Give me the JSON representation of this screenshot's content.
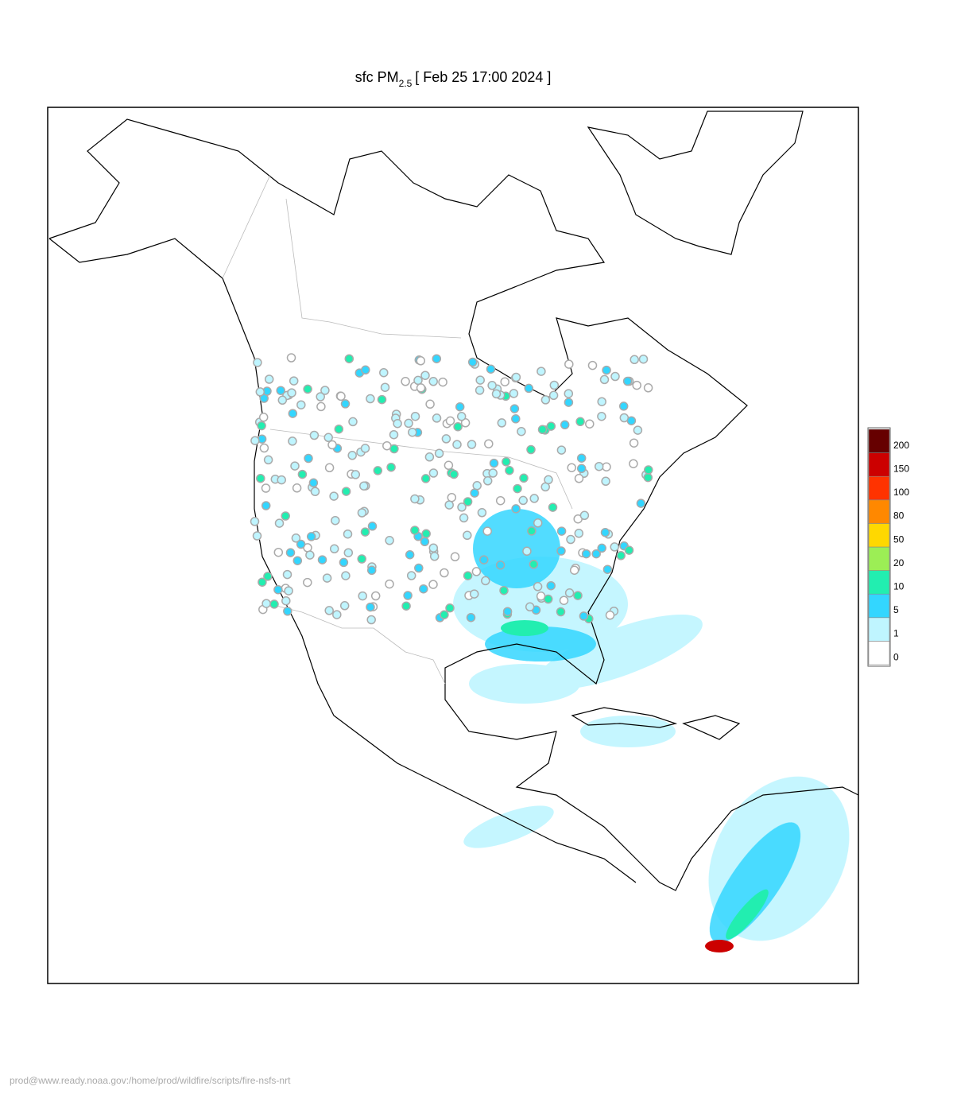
{
  "title": {
    "prefix": "sfc PM",
    "subscript": "2.5",
    "suffix": "[ Feb 25 17:00 2024 ]"
  },
  "legend": [
    {
      "value": 0,
      "color": "#ffffff"
    },
    {
      "value": 1,
      "color": "#bff5ff"
    },
    {
      "value": 5,
      "color": "#33d6ff"
    },
    {
      "value": 10,
      "color": "#22eeb0"
    },
    {
      "value": 20,
      "color": "#9cee55"
    },
    {
      "value": 50,
      "color": "#ffd800"
    },
    {
      "value": 80,
      "color": "#ff8800"
    },
    {
      "value": 100,
      "color": "#ff3300"
    },
    {
      "value": 150,
      "color": "#cc0000"
    },
    {
      "value": 200,
      "color": "#660000"
    }
  ],
  "footer": "prod@www.ready.noaa.gov:/home/prod/wildfire/scripts/fire-nsfs-nrt"
}
